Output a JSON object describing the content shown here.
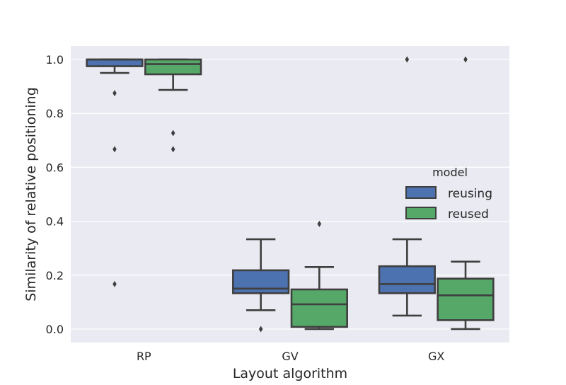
{
  "chart_data": {
    "type": "boxplot",
    "xlabel": "Layout algorithm",
    "ylabel": "Similarity of relative positioning",
    "categories": [
      "RP",
      "GV",
      "GX"
    ],
    "ylim": [
      -0.05,
      1.05
    ],
    "yticks": [
      0.0,
      0.2,
      0.4,
      0.6,
      0.8,
      1.0
    ],
    "ytick_labels": [
      "0.0",
      "0.2",
      "0.4",
      "0.6",
      "0.8",
      "1.0"
    ],
    "grid": true,
    "legend": {
      "title": "model",
      "position": "center-right"
    },
    "series": [
      {
        "name": "reusing",
        "color": "#4c72b0",
        "boxes": [
          {
            "category": "RP",
            "whislo": 0.95,
            "q1": 0.975,
            "med": 1.0,
            "q3": 1.0,
            "whishi": 1.0,
            "fliers": [
              0.875,
              0.667,
              0.167
            ]
          },
          {
            "category": "GV",
            "whislo": 0.07,
            "q1": 0.133,
            "med": 0.15,
            "q3": 0.218,
            "whishi": 0.333,
            "fliers": [
              0.0
            ]
          },
          {
            "category": "GX",
            "whislo": 0.05,
            "q1": 0.133,
            "med": 0.167,
            "q3": 0.233,
            "whishi": 0.333,
            "fliers": [
              1.0
            ]
          }
        ]
      },
      {
        "name": "reused",
        "color": "#55a868",
        "boxes": [
          {
            "category": "RP",
            "whislo": 0.887,
            "q1": 0.945,
            "med": 0.983,
            "q3": 1.0,
            "whishi": 1.0,
            "fliers": [
              0.727,
              0.667
            ]
          },
          {
            "category": "GV",
            "whislo": 0.0,
            "q1": 0.008,
            "med": 0.092,
            "q3": 0.147,
            "whishi": 0.23,
            "fliers": [
              0.39
            ]
          },
          {
            "category": "GX",
            "whislo": 0.0,
            "q1": 0.033,
            "med": 0.125,
            "q3": 0.187,
            "whishi": 0.25,
            "fliers": [
              1.0
            ]
          }
        ]
      }
    ]
  }
}
